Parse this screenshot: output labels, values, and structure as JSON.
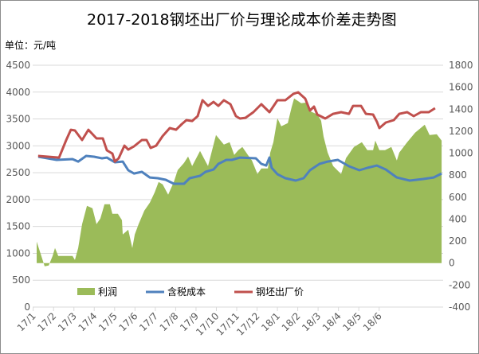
{
  "chart_data": {
    "type": "line",
    "title": "2017-2018钢坯出厂价与理论成本价差走势图",
    "unit_label": "单位：元/吨",
    "x_unit": "months since 2017-01",
    "x_tick_labels": [
      "17/1",
      "17/2",
      "17/3",
      "17/4",
      "17/5",
      "17/6",
      "17/7",
      "17/8",
      "17/9",
      "17/10",
      "17/11",
      "17/12",
      "18/1",
      "18/2",
      "18/3",
      "18/4",
      "18/5",
      "18/6"
    ],
    "left_axis": {
      "ylim": [
        0,
        4500
      ],
      "ticks": [
        "0",
        "500",
        "1000",
        "1500",
        "2000",
        "2500",
        "3000",
        "3500",
        "4000",
        "4500"
      ]
    },
    "right_axis": {
      "ylim": [
        -400,
        1800
      ],
      "ticks": [
        "-400",
        "-200",
        "0",
        "200",
        "400",
        "600",
        "800",
        "1000",
        "1200",
        "1400",
        "1600",
        "1800"
      ]
    },
    "grid": true,
    "legend_position": "bottom-inside",
    "series": [
      {
        "name": "利润",
        "type": "area",
        "axis": "right",
        "color": "#9bbb59",
        "points": [
          [
            0.17,
            195
          ],
          [
            0.36,
            87
          ],
          [
            0.56,
            -29
          ],
          [
            0.76,
            -22
          ],
          [
            0.95,
            65
          ],
          [
            1.07,
            137
          ],
          [
            1.23,
            65
          ],
          [
            1.93,
            65
          ],
          [
            2.05,
            29
          ],
          [
            2.21,
            137
          ],
          [
            2.4,
            355
          ],
          [
            2.64,
            521
          ],
          [
            2.91,
            499
          ],
          [
            3.11,
            355
          ],
          [
            3.3,
            405
          ],
          [
            3.5,
            536
          ],
          [
            3.77,
            536
          ],
          [
            3.89,
            449
          ],
          [
            4.16,
            449
          ],
          [
            4.36,
            391
          ],
          [
            4.4,
            261
          ],
          [
            4.67,
            304
          ],
          [
            4.87,
            137
          ],
          [
            4.99,
            261
          ],
          [
            5.18,
            355
          ],
          [
            5.46,
            478
          ],
          [
            5.73,
            550
          ],
          [
            5.97,
            644
          ],
          [
            6.16,
            738
          ],
          [
            6.36,
            716
          ],
          [
            6.63,
            622
          ],
          [
            6.91,
            738
          ],
          [
            7.1,
            847
          ],
          [
            7.41,
            912
          ],
          [
            7.61,
            970
          ],
          [
            7.81,
            883
          ],
          [
            8.2,
            1020
          ],
          [
            8.59,
            883
          ],
          [
            8.98,
            1165
          ],
          [
            9.37,
            1078
          ],
          [
            9.65,
            1100
          ],
          [
            9.88,
            984
          ],
          [
            10.08,
            1028
          ],
          [
            10.28,
            1057
          ],
          [
            10.55,
            984
          ],
          [
            10.75,
            934
          ],
          [
            11.02,
            811
          ],
          [
            11.21,
            861
          ],
          [
            11.53,
            861
          ],
          [
            11.65,
            1006
          ],
          [
            11.8,
            1100
          ],
          [
            12.0,
            1317
          ],
          [
            12.19,
            1245
          ],
          [
            12.51,
            1274
          ],
          [
            12.7,
            1418
          ],
          [
            12.82,
            1498
          ],
          [
            13.17,
            1455
          ],
          [
            13.49,
            1462
          ],
          [
            13.6,
            1382
          ],
          [
            13.96,
            1353
          ],
          [
            14.15,
            1295
          ],
          [
            14.27,
            1151
          ],
          [
            14.47,
            1006
          ],
          [
            14.74,
            883
          ],
          [
            15.13,
            811
          ],
          [
            15.37,
            955
          ],
          [
            15.76,
            1057
          ],
          [
            16.15,
            1100
          ],
          [
            16.42,
            1028
          ],
          [
            16.7,
            1028
          ],
          [
            16.81,
            1115
          ],
          [
            17.01,
            1028
          ],
          [
            17.29,
            1028
          ],
          [
            17.6,
            1057
          ],
          [
            17.87,
            934
          ],
          [
            17.99,
            1006
          ],
          [
            18.38,
            1100
          ],
          [
            18.77,
            1187
          ],
          [
            19.24,
            1259
          ],
          [
            19.48,
            1165
          ],
          [
            19.83,
            1172
          ],
          [
            20.07,
            1115
          ]
        ]
      },
      {
        "name": "含税成本",
        "type": "line",
        "axis": "left",
        "color": "#4f81bd",
        "points": [
          [
            0.25,
            2797
          ],
          [
            1.15,
            2738
          ],
          [
            1.93,
            2753
          ],
          [
            2.21,
            2708
          ],
          [
            2.6,
            2812
          ],
          [
            2.99,
            2797
          ],
          [
            3.38,
            2768
          ],
          [
            3.62,
            2782
          ],
          [
            4.01,
            2694
          ],
          [
            4.4,
            2708
          ],
          [
            4.67,
            2546
          ],
          [
            4.95,
            2486
          ],
          [
            5.34,
            2516
          ],
          [
            5.73,
            2412
          ],
          [
            6.12,
            2398
          ],
          [
            6.51,
            2368
          ],
          [
            6.91,
            2294
          ],
          [
            7.41,
            2294
          ],
          [
            7.69,
            2398
          ],
          [
            8.2,
            2442
          ],
          [
            8.47,
            2516
          ],
          [
            8.86,
            2560
          ],
          [
            9.1,
            2664
          ],
          [
            9.49,
            2738
          ],
          [
            9.76,
            2738
          ],
          [
            10.16,
            2782
          ],
          [
            10.94,
            2768
          ],
          [
            11.21,
            2664
          ],
          [
            11.45,
            2634
          ],
          [
            11.61,
            2782
          ],
          [
            11.72,
            2590
          ],
          [
            12.0,
            2472
          ],
          [
            12.39,
            2398
          ],
          [
            12.9,
            2353
          ],
          [
            13.29,
            2398
          ],
          [
            13.6,
            2546
          ],
          [
            14.07,
            2664
          ],
          [
            14.47,
            2708
          ],
          [
            14.97,
            2738
          ],
          [
            15.52,
            2620
          ],
          [
            16.03,
            2546
          ],
          [
            16.42,
            2590
          ],
          [
            16.89,
            2634
          ],
          [
            17.33,
            2560
          ],
          [
            17.87,
            2412
          ],
          [
            18.5,
            2353
          ],
          [
            19.17,
            2383
          ],
          [
            19.68,
            2412
          ],
          [
            20.07,
            2486
          ]
        ]
      },
      {
        "name": "钢坯出厂价",
        "type": "line",
        "axis": "left",
        "color": "#c0504d",
        "points": [
          [
            0.24,
            2812
          ],
          [
            1.27,
            2782
          ],
          [
            1.62,
            3108
          ],
          [
            1.85,
            3300
          ],
          [
            2.05,
            3286
          ],
          [
            2.4,
            3108
          ],
          [
            2.71,
            3300
          ],
          [
            3.11,
            3138
          ],
          [
            3.42,
            3138
          ],
          [
            3.62,
            2916
          ],
          [
            3.89,
            2856
          ],
          [
            4.01,
            2708
          ],
          [
            4.2,
            2768
          ],
          [
            4.48,
            3004
          ],
          [
            4.67,
            2930
          ],
          [
            4.95,
            2990
          ],
          [
            5.34,
            3108
          ],
          [
            5.57,
            3108
          ],
          [
            5.77,
            2960
          ],
          [
            6.04,
            3004
          ],
          [
            6.36,
            3182
          ],
          [
            6.71,
            3330
          ],
          [
            7.02,
            3300
          ],
          [
            7.3,
            3404
          ],
          [
            7.53,
            3478
          ],
          [
            7.81,
            3463
          ],
          [
            8.08,
            3552
          ],
          [
            8.32,
            3848
          ],
          [
            8.59,
            3744
          ],
          [
            8.86,
            3818
          ],
          [
            9.1,
            3744
          ],
          [
            9.37,
            3848
          ],
          [
            9.69,
            3774
          ],
          [
            9.96,
            3552
          ],
          [
            10.16,
            3508
          ],
          [
            10.43,
            3522
          ],
          [
            10.82,
            3626
          ],
          [
            11.21,
            3774
          ],
          [
            11.61,
            3626
          ],
          [
            12.0,
            3848
          ],
          [
            12.39,
            3848
          ],
          [
            12.78,
            3966
          ],
          [
            13.02,
            3996
          ],
          [
            13.37,
            3878
          ],
          [
            13.6,
            3656
          ],
          [
            13.8,
            3730
          ],
          [
            13.96,
            3582
          ],
          [
            14.35,
            3508
          ],
          [
            14.74,
            3596
          ],
          [
            15.13,
            3626
          ],
          [
            15.52,
            3596
          ],
          [
            15.72,
            3744
          ],
          [
            16.11,
            3744
          ],
          [
            16.35,
            3596
          ],
          [
            16.7,
            3582
          ],
          [
            16.89,
            3448
          ],
          [
            17.01,
            3330
          ],
          [
            17.33,
            3434
          ],
          [
            17.72,
            3478
          ],
          [
            17.99,
            3596
          ],
          [
            18.38,
            3626
          ],
          [
            18.7,
            3552
          ],
          [
            19.05,
            3626
          ],
          [
            19.44,
            3626
          ],
          [
            19.75,
            3700
          ]
        ]
      }
    ]
  }
}
